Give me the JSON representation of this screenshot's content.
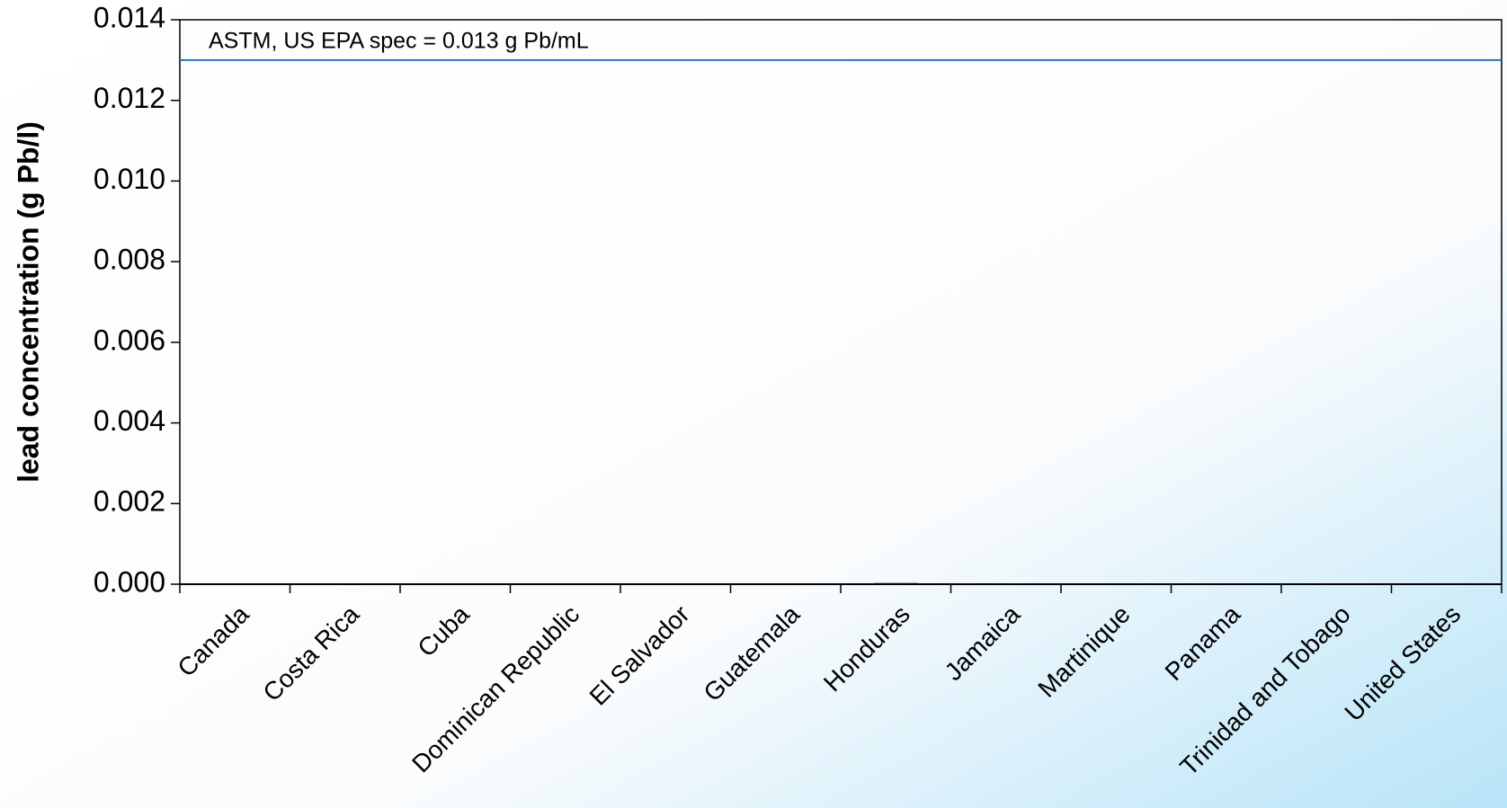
{
  "chart_data": {
    "type": "bar",
    "y_label": "lead concentration (g Pb/l)",
    "categories": [
      "Canada",
      "Costa Rica",
      "Cuba",
      "Dominican Republic",
      "El Salvador",
      "Guatemala",
      "Honduras",
      "Jamaica",
      "Martinique",
      "Panama",
      "Trinidad and Tobago",
      "United States"
    ],
    "values": [
      0,
      0,
      0,
      0,
      0,
      0,
      3e-05,
      0,
      0,
      0,
      0,
      0
    ],
    "color": "#1f3a93",
    "ylim": [
      0,
      0.014
    ],
    "yticks": [
      {
        "value": 0,
        "label": "0.000"
      },
      {
        "value": 0.002,
        "label": "0.002"
      },
      {
        "value": 0.004,
        "label": "0.004"
      },
      {
        "value": 0.006,
        "label": "0.006"
      },
      {
        "value": 0.008,
        "label": "0.008"
      },
      {
        "value": 0.01,
        "label": "0.010"
      },
      {
        "value": 0.012,
        "label": "0.012"
      },
      {
        "value": 0.014,
        "label": "0.014"
      }
    ],
    "reference_line": {
      "value": 0.013,
      "label": "ASTM, US EPA spec = 0.013 g Pb/mL",
      "color": "#2e6fc4"
    },
    "grid": false
  }
}
